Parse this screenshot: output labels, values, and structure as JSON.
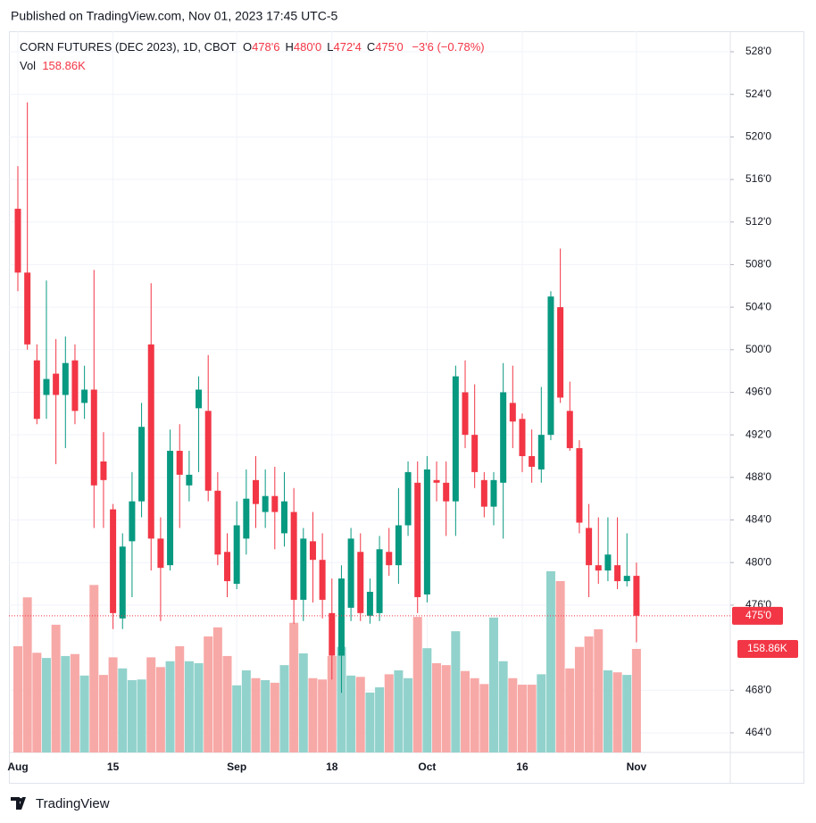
{
  "published": "Published on TradingView.com, Nov 01, 2023 17:45 UTC-5",
  "footer": "TradingView",
  "legend": {
    "symbol": "CORN FUTURES (DEC 2023), 1D, CBOT",
    "ohlc": [
      {
        "key": "O",
        "value": "478'6"
      },
      {
        "key": "H",
        "value": "480'0"
      },
      {
        "key": "L",
        "value": "472'4"
      },
      {
        "key": "C",
        "value": "475'0"
      }
    ],
    "change": "−3'6 (−0.78%)",
    "vol_label": "Vol",
    "vol_value": "158.86K"
  },
  "chart_data": {
    "type": "candlestick",
    "categories": [
      "Aug",
      null,
      null,
      null,
      null,
      null,
      null,
      null,
      null,
      null,
      "15",
      null,
      null,
      null,
      null,
      null,
      null,
      null,
      null,
      null,
      null,
      null,
      null,
      "Sep",
      null,
      null,
      null,
      null,
      null,
      null,
      null,
      null,
      null,
      "18",
      null,
      null,
      null,
      null,
      null,
      null,
      null,
      null,
      null,
      "Oct",
      null,
      null,
      null,
      null,
      null,
      null,
      null,
      null,
      null,
      "16",
      null,
      null,
      null,
      null,
      null,
      null,
      null,
      null,
      null,
      null,
      null,
      "Nov"
    ],
    "open": [
      513.25,
      507.25,
      499,
      495.75,
      497.75,
      495.75,
      499,
      495,
      496.25,
      489.5,
      485,
      474.75,
      482,
      485.75,
      500.5,
      482.25,
      479.75,
      490.5,
      487.25,
      494.5,
      494.25,
      486.75,
      481,
      478,
      482.25,
      487.75,
      484.75,
      486.25,
      482.75,
      484.75,
      476.5,
      482,
      480.25,
      475.25,
      471.25,
      475.75,
      481,
      475,
      475.25,
      481,
      479.75,
      483.5,
      487.5,
      477,
      487.75,
      487.5,
      485.75,
      496,
      492,
      487.75,
      485.25,
      487.5,
      495,
      493.5,
      490,
      488.75,
      492,
      504,
      494.25,
      490.75,
      483.25,
      479.75,
      479.25,
      479.75,
      478.25,
      478.75
    ],
    "high": [
      517.25,
      523.25,
      500.5,
      506.5,
      501,
      501.25,
      500.5,
      498.5,
      507.5,
      492.25,
      485.5,
      482.75,
      488.5,
      495,
      506.25,
      484.25,
      492.5,
      493,
      490.5,
      497.5,
      499.5,
      488.5,
      482.75,
      485.75,
      488.75,
      490,
      488.75,
      489,
      488.5,
      487,
      483.25,
      484.75,
      482.75,
      478.5,
      479.75,
      483.25,
      482.75,
      478.5,
      482.5,
      483.25,
      487,
      489.5,
      489.5,
      490,
      489.5,
      489.5,
      498.5,
      499,
      496.75,
      488.5,
      488.5,
      498.75,
      498.5,
      494,
      492.5,
      496.5,
      505.5,
      509.5,
      497,
      491.5,
      485.5,
      484.25,
      484.25,
      484.25,
      482.75,
      480
    ],
    "low": [
      505.5,
      500,
      493,
      493.5,
      489.25,
      490.75,
      493,
      493.5,
      483.25,
      483.25,
      473.75,
      473.75,
      476.75,
      484.25,
      479.25,
      474.5,
      479.25,
      483.25,
      485.75,
      488.5,
      485.75,
      479.75,
      476.75,
      477.5,
      480.75,
      483.25,
      483.25,
      481.25,
      481.5,
      474.25,
      474.5,
      476.25,
      474.75,
      469,
      467.75,
      474.5,
      474.5,
      474.25,
      474.5,
      478.75,
      478,
      482.5,
      475.25,
      476.25,
      485.75,
      482.5,
      482.5,
      490.75,
      487,
      484.25,
      483.5,
      482.25,
      490.75,
      488.5,
      487.5,
      487.5,
      491.5,
      495,
      490.5,
      482.75,
      476.75,
      478,
      478.25,
      477.5,
      477.75,
      472.5
    ],
    "close": [
      507.25,
      500.5,
      493.5,
      497.25,
      495.75,
      498.75,
      494.25,
      496.25,
      487.25,
      487.75,
      475.25,
      481.5,
      485.75,
      492.75,
      482.25,
      479.5,
      490.5,
      488.25,
      488.25,
      496.25,
      486.75,
      480.75,
      478.25,
      483.5,
      486,
      485.5,
      486.25,
      484.75,
      485.75,
      476.5,
      482.25,
      480.25,
      476.5,
      471.25,
      478.5,
      482.25,
      475.25,
      477.25,
      481.25,
      479.75,
      483.5,
      488.5,
      476.75,
      488.75,
      487.5,
      485.75,
      497.5,
      492,
      488.5,
      485.25,
      487.75,
      496,
      493.25,
      490,
      489,
      492,
      505,
      495.5,
      490.75,
      483.75,
      479.75,
      479.25,
      480.75,
      478.25,
      478.75,
      475
    ],
    "volume": [
      163,
      238,
      153,
      145,
      196,
      148,
      151,
      118,
      257,
      119,
      146,
      129,
      111,
      112,
      146,
      131,
      140,
      163,
      140,
      137,
      178,
      192,
      148,
      103,
      126,
      114,
      111,
      107,
      134,
      199,
      152,
      114,
      112,
      148,
      162,
      118,
      116,
      92,
      100,
      120,
      126,
      114,
      208,
      160,
      137,
      134,
      186,
      125,
      114,
      105,
      207,
      140,
      114,
      104,
      104,
      120,
      278,
      263,
      129,
      162,
      178,
      189,
      126,
      123,
      119,
      158.86
    ],
    "ylim": [
      462.15,
      529.93
    ],
    "yticks": [
      {
        "value": 528,
        "label": "528'0"
      },
      {
        "value": 524,
        "label": "524'0"
      },
      {
        "value": 520,
        "label": "520'0"
      },
      {
        "value": 516,
        "label": "516'0"
      },
      {
        "value": 512,
        "label": "512'0"
      },
      {
        "value": 508,
        "label": "508'0"
      },
      {
        "value": 504,
        "label": "504'0"
      },
      {
        "value": 500,
        "label": "500'0"
      },
      {
        "value": 496,
        "label": "496'0"
      },
      {
        "value": 492,
        "label": "492'0"
      },
      {
        "value": 488,
        "label": "488'0"
      },
      {
        "value": 484,
        "label": "484'0"
      },
      {
        "value": 480,
        "label": "480'0"
      },
      {
        "value": 476,
        "label": "476'0"
      },
      {
        "value": 468,
        "label": "468'0"
      },
      {
        "value": 464,
        "label": "464'0"
      }
    ],
    "last_price": {
      "value": 475,
      "label": "475'0"
    },
    "last_volume": {
      "value": 158.86,
      "label": "158.86K"
    },
    "grid": true,
    "up_color": "#089981",
    "down_color": "#f23645",
    "up_volume_color": "#92d2cc",
    "down_volume_color": "#f7a9a7"
  }
}
